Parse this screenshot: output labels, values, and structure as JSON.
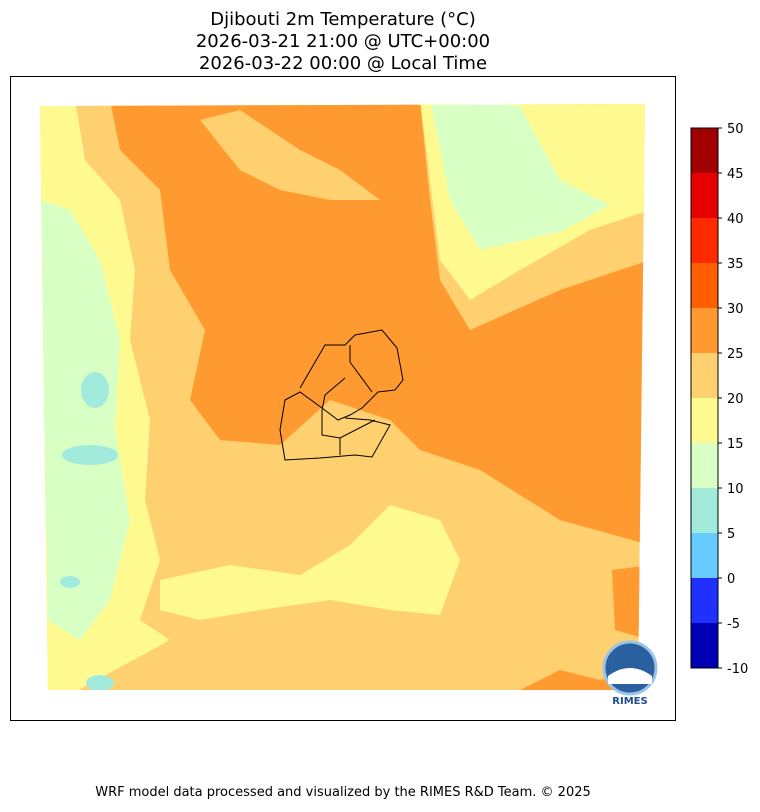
{
  "header": {
    "title_lines": [
      "Djibouti 2m Temperature (°C)",
      "2026-03-21 21:00 @ UTC+00:00",
      "2026-03-22 00:00 @ Local Time"
    ]
  },
  "colorbar": {
    "ticks": [
      -10,
      -5,
      0,
      5,
      10,
      15,
      20,
      25,
      30,
      35,
      40,
      45,
      50
    ],
    "colors": [
      "#0000b4",
      "#2030ff",
      "#66ccff",
      "#a2eadc",
      "#d8ffc4",
      "#fffa90",
      "#ffd070",
      "#ff9a30",
      "#ff5f00",
      "#ff2a00",
      "#e60000",
      "#a00000"
    ]
  },
  "logo": {
    "text": "RIMES"
  },
  "footer": {
    "credit": "WRF model data processed and visualized by the RIMES R&D Team. © 2025"
  }
}
